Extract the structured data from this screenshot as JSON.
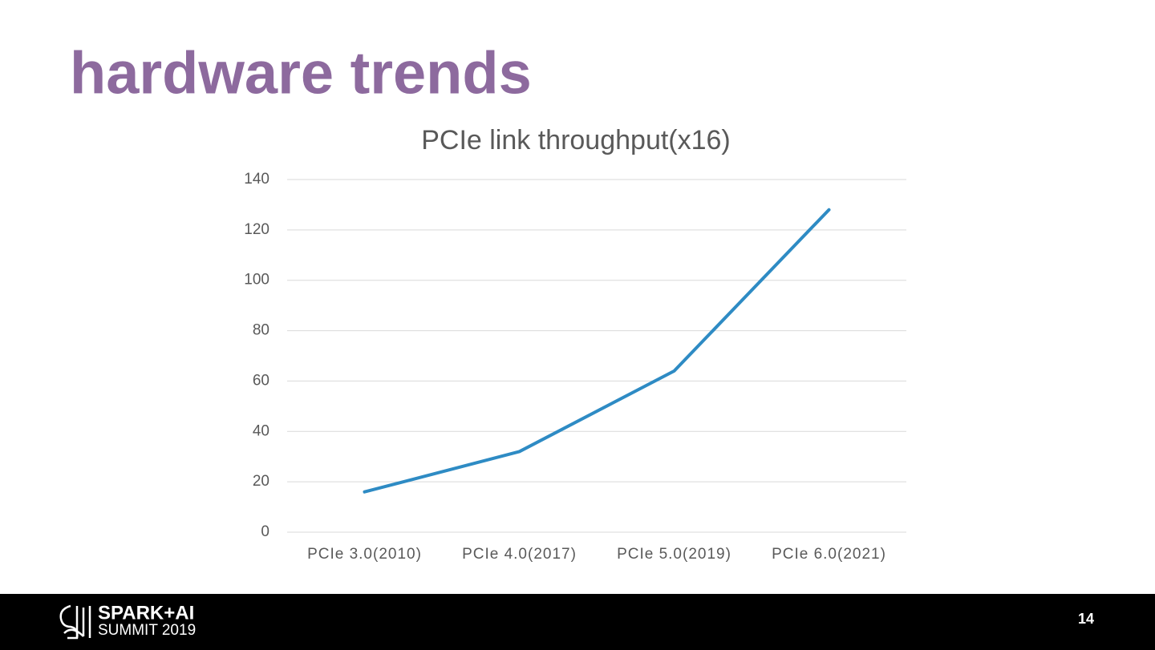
{
  "slide": {
    "title": "hardware trends",
    "page_number": "14"
  },
  "footer": {
    "brand_top": "SPARK+AI",
    "brand_bottom": "SUMMIT 2019"
  },
  "chart_data": {
    "type": "line",
    "title": "PCIe link throughput(x16)",
    "categories": [
      "PCIe 3.0(2010)",
      "PCIe 4.0(2017)",
      "PCIe 5.0(2019)",
      "PCIe 6.0(2021)"
    ],
    "values": [
      16,
      32,
      64,
      128
    ],
    "color": "#2e8bc4",
    "ylim": [
      0,
      140
    ],
    "yticks": [
      0,
      20,
      40,
      60,
      80,
      100,
      120,
      140
    ],
    "grid": true
  }
}
